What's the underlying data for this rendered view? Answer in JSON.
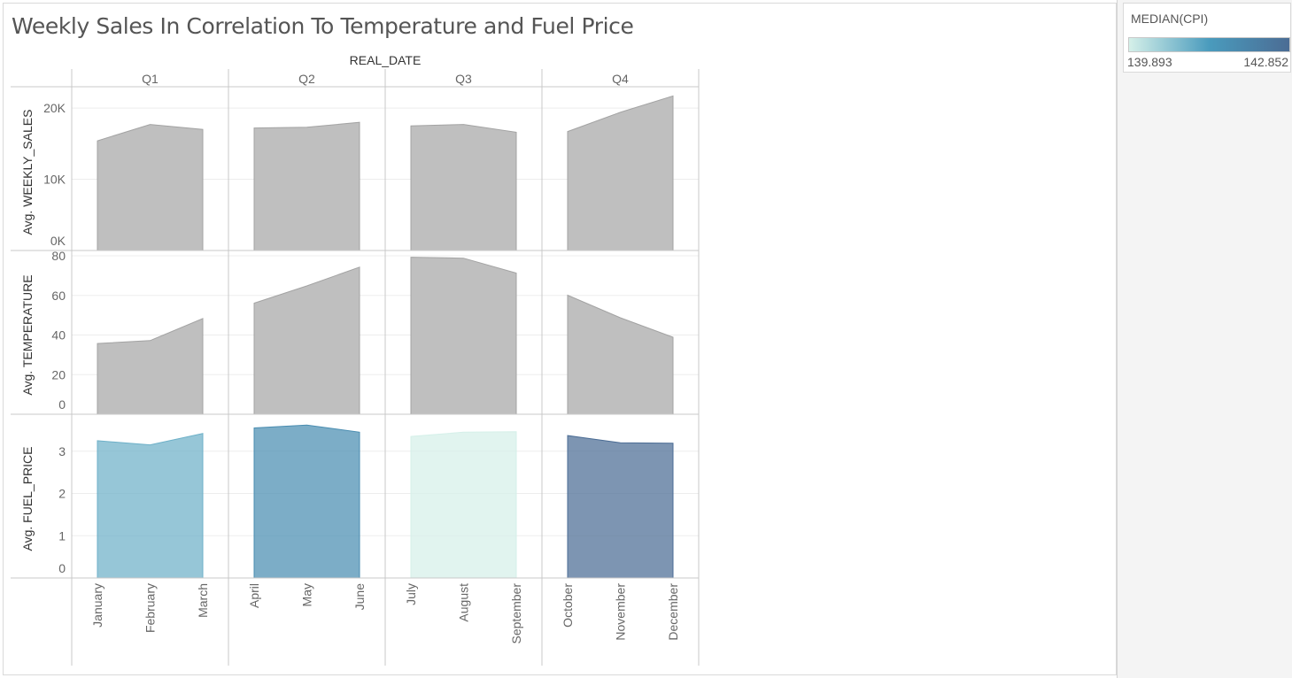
{
  "title": "Weekly Sales In Correlation To Temperature and Fuel Price",
  "legend": {
    "title": "MEDIAN(CPI)",
    "min_label": "139.893",
    "max_label": "142.852",
    "min": 139.893,
    "max": 142.852,
    "colors": [
      "#d5f0e9",
      "#4a9bbd",
      "#4b6c94"
    ]
  },
  "chart_data": {
    "type": "area",
    "column_header": "REAL_DATE",
    "quarters": [
      "Q1",
      "Q2",
      "Q3",
      "Q4"
    ],
    "months": [
      [
        "January",
        "February",
        "March"
      ],
      [
        "April",
        "May",
        "June"
      ],
      [
        "July",
        "August",
        "September"
      ],
      [
        "October",
        "November",
        "December"
      ]
    ],
    "rows": [
      {
        "label": "Avg. WEEKLY_SALES",
        "ylim": [
          0,
          22000
        ],
        "ticks": [
          0,
          10000,
          20000
        ],
        "tick_labels": [
          "0K",
          "10K",
          "20K"
        ],
        "values": [
          [
            15400,
            17700,
            17000
          ],
          [
            17200,
            17300,
            18000
          ],
          [
            17500,
            17700,
            16600
          ],
          [
            16700,
            19400,
            21700
          ]
        ],
        "color_by_cpi": false
      },
      {
        "label": "Avg. TEMPERATURE",
        "ylim": [
          0,
          80
        ],
        "ticks": [
          0,
          20,
          40,
          60,
          80
        ],
        "tick_labels": [
          "0",
          "20",
          "40",
          "60",
          "80"
        ],
        "values": [
          [
            35.7,
            37.2,
            48.3
          ],
          [
            56.1,
            64.8,
            74.3
          ],
          [
            79.3,
            78.8,
            71.3
          ],
          [
            60.1,
            48.7,
            38.9
          ]
        ],
        "color_by_cpi": false
      },
      {
        "label": "Avg. FUEL_PRICE",
        "ylim": [
          0,
          3.75
        ],
        "ticks": [
          0,
          1,
          2,
          3
        ],
        "tick_labels": [
          "0",
          "1",
          "2",
          "3"
        ],
        "values": [
          [
            3.25,
            3.15,
            3.42
          ],
          [
            3.55,
            3.62,
            3.45
          ],
          [
            3.35,
            3.45,
            3.46
          ],
          [
            3.37,
            3.2,
            3.19
          ]
        ],
        "color_by_cpi": true
      }
    ],
    "quarter_median_cpi": [
      141.0,
      141.8,
      139.893,
      142.852
    ],
    "neutral_fill": "#bfbfbf",
    "neutral_stroke": "#a3a3a3",
    "grid": true
  }
}
